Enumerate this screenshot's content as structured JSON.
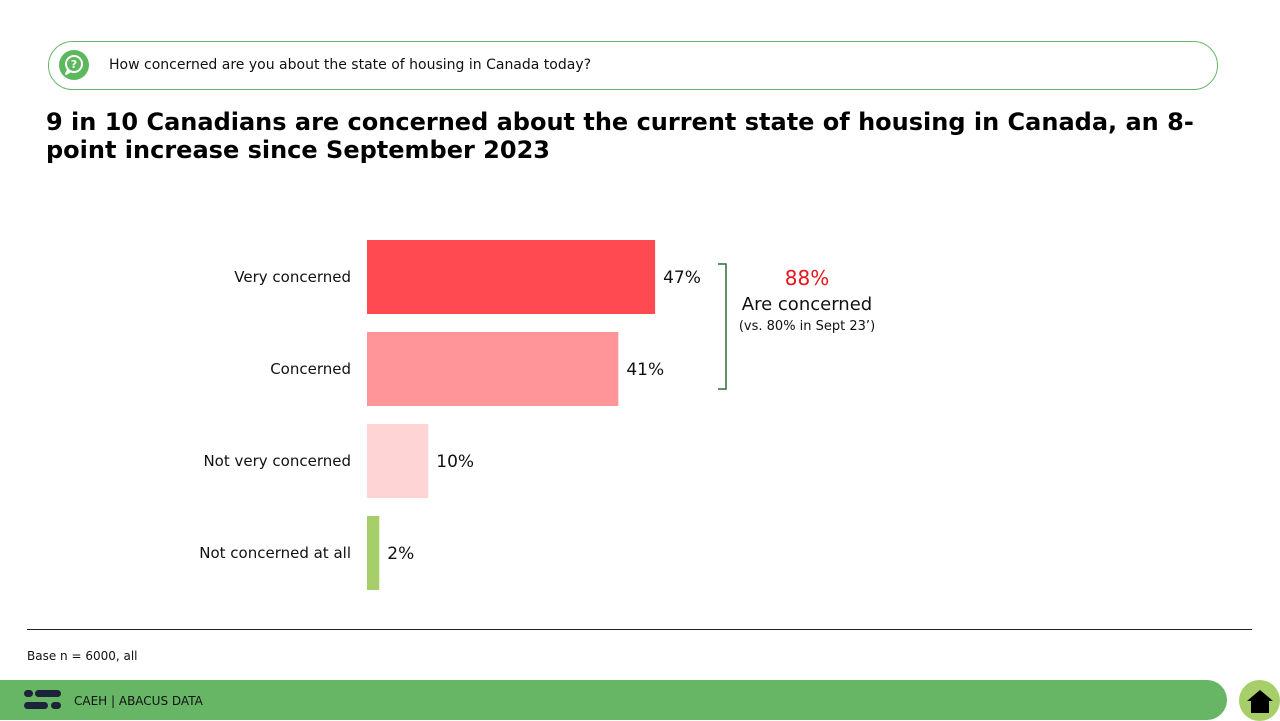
{
  "question": {
    "icon": "question-bubble-icon",
    "text": "How concerned are you about the state of housing in Canada today?"
  },
  "headline": "9 in 10 Canadians are concerned about the current state of housing in Canada, an 8-point increase since September 2023",
  "chart_data": {
    "type": "bar",
    "orientation": "horizontal",
    "categories": [
      "Very concerned",
      "Concerned",
      "Not very concerned",
      "Not concerned at all"
    ],
    "values": [
      47,
      41,
      10,
      2
    ],
    "value_labels": [
      "47%",
      "41%",
      "10%",
      "2%"
    ],
    "colors": [
      "#ff4a52",
      "#ff9598",
      "#ffd4d5",
      "#a6cf6a"
    ],
    "xlim": [
      0,
      100
    ],
    "grid": false,
    "legend": "none"
  },
  "callout": {
    "pct": "88%",
    "label": "Are concerned",
    "sub": "(vs. 80% in Sept 23’)",
    "pct_color": "#e4161c"
  },
  "base_note": "Base n = 6000, all",
  "footer": {
    "text": "CAEH  |  ABACUS DATA",
    "logo_icon": "abacus-logo-icon",
    "home_icon": "home-icon"
  }
}
